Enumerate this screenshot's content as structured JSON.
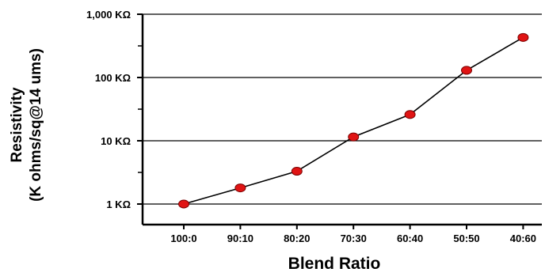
{
  "chart_data": {
    "type": "line",
    "title": "",
    "xlabel": "Blend Ratio",
    "ylabel_line1": "Resistivity",
    "ylabel_line2": "(K ohms/sq@14 ums)",
    "categories": [
      "100:0",
      "90:10",
      "80:20",
      "70:30",
      "60:40",
      "50:50",
      "40:60"
    ],
    "series": [
      {
        "values": [
          1,
          1.8,
          3.3,
          11.5,
          26,
          130,
          430
        ]
      }
    ],
    "y_scale": "log",
    "ylim": [
      0.6,
      1500
    ],
    "y_ticks": [
      {
        "value": 1,
        "label": "1 KΩ"
      },
      {
        "value": 10,
        "label": "10 KΩ"
      },
      {
        "value": 100,
        "label": "100 KΩ"
      },
      {
        "value": 1000,
        "label": "1,000 KΩ"
      }
    ],
    "grid": "horizontal",
    "legend": "none",
    "colors": {
      "marker_fill": "#e01414",
      "marker_stroke": "#7a0000",
      "line": "#000000",
      "grid": "#000000"
    }
  }
}
